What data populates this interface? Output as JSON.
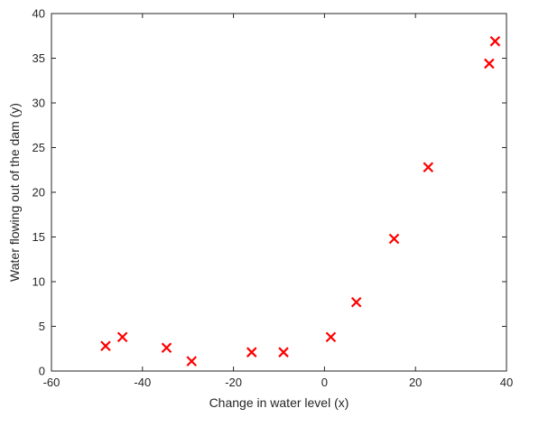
{
  "chart_data": {
    "type": "scatter",
    "title": "",
    "xlabel": "Change in water level (x)",
    "ylabel": "Water flowing out of the dam (y)",
    "xlim": [
      -60,
      40
    ],
    "ylim": [
      0,
      40
    ],
    "xticks": [
      -60,
      -40,
      -20,
      0,
      20,
      40
    ],
    "yticks": [
      0,
      5,
      10,
      15,
      20,
      25,
      30,
      35,
      40
    ],
    "grid": false,
    "legend": "none",
    "marker": "x",
    "colors": {
      "marker": "#ff0000",
      "axis": "#262626",
      "background": "#ffffff"
    },
    "series": [
      {
        "points": [
          {
            "x": -48.1,
            "y": 2.8
          },
          {
            "x": -44.4,
            "y": 3.8
          },
          {
            "x": -34.7,
            "y": 2.6
          },
          {
            "x": -29.2,
            "y": 1.1
          },
          {
            "x": -16.0,
            "y": 2.1
          },
          {
            "x": -9.0,
            "y": 2.1
          },
          {
            "x": 1.4,
            "y": 3.8
          },
          {
            "x": 7.0,
            "y": 7.7
          },
          {
            "x": 15.3,
            "y": 14.8
          },
          {
            "x": 22.8,
            "y": 22.8
          },
          {
            "x": 36.2,
            "y": 34.4
          },
          {
            "x": 37.5,
            "y": 36.9
          }
        ]
      }
    ]
  }
}
